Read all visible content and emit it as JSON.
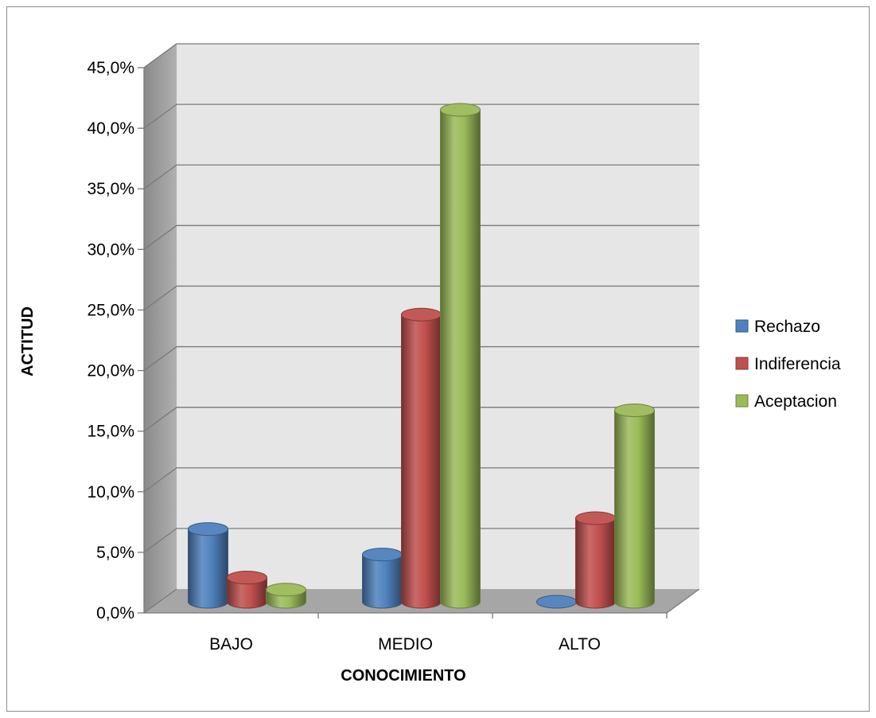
{
  "chart_data": {
    "type": "bar",
    "style": "3d-cylinder",
    "categories": [
      "BAJO",
      "MEDIO",
      "ALTO"
    ],
    "series": [
      {
        "name": "Rechazo",
        "color": "#4f81bd",
        "values": [
          6.0,
          3.9,
          0.0
        ]
      },
      {
        "name": "Indiferencia",
        "color": "#c0504d",
        "values": [
          2.0,
          23.7,
          6.9
        ]
      },
      {
        "name": "Aceptacion",
        "color": "#9bbb59",
        "values": [
          1.0,
          40.6,
          15.8
        ]
      }
    ],
    "xlabel": "CONOCIMIENTO",
    "ylabel": "ACTITUD",
    "ylim": [
      0,
      45
    ],
    "yticks": [
      "0,0%",
      "5,0%",
      "10,0%",
      "15,0%",
      "20,0%",
      "25,0%",
      "30,0%",
      "35,0%",
      "40,0%",
      "45,0%"
    ],
    "grid": true,
    "legend_position": "right"
  }
}
